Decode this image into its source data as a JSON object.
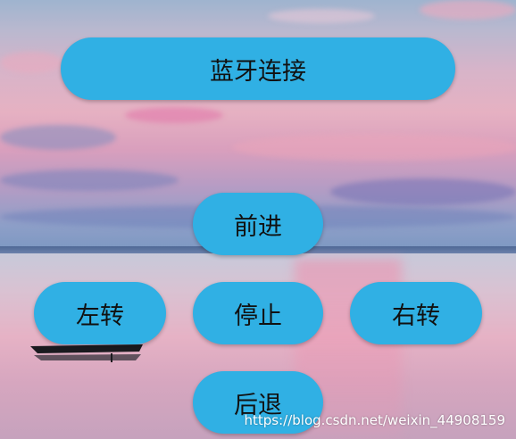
{
  "controls": {
    "connect_label": "蓝牙连接",
    "forward_label": "前进",
    "left_label": "左转",
    "stop_label": "停止",
    "right_label": "右转",
    "back_label": "后退"
  },
  "watermark": "https://blog.csdn.net/weixin_44908159",
  "colors": {
    "button": "#30b0e4",
    "button_text": "#111111"
  }
}
